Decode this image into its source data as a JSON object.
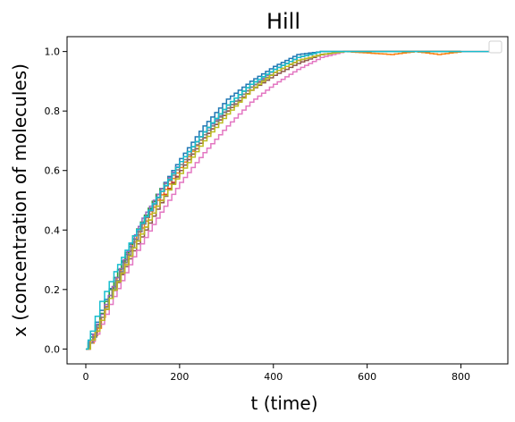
{
  "chart_data": {
    "type": "line",
    "title": "Hill",
    "xlabel": "t (time)",
    "ylabel": "x (concentration of molecules)",
    "xlim": [
      -40,
      900
    ],
    "ylim": [
      -0.05,
      1.05
    ],
    "xticks": [
      0,
      200,
      400,
      600,
      800
    ],
    "yticks": [
      0.0,
      0.2,
      0.4,
      0.6,
      0.8,
      1.0
    ],
    "xtick_labels": [
      "0",
      "200",
      "400",
      "600",
      "800"
    ],
    "ytick_labels": [
      "0.0",
      "0.2",
      "0.4",
      "0.6",
      "0.8",
      "1.0"
    ],
    "grid": false,
    "legend": "top-right (empty)",
    "series": [
      {
        "color": "#1f77b4",
        "points": [
          [
            0,
            0
          ],
          [
            10,
            0.05
          ],
          [
            30,
            0.13
          ],
          [
            60,
            0.24
          ],
          [
            100,
            0.37
          ],
          [
            150,
            0.52
          ],
          [
            200,
            0.64
          ],
          [
            250,
            0.75
          ],
          [
            300,
            0.84
          ],
          [
            350,
            0.9
          ],
          [
            400,
            0.95
          ],
          [
            450,
            0.99
          ],
          [
            500,
            1.0
          ],
          [
            800,
            1.0
          ]
        ]
      },
      {
        "color": "#ff7f0e",
        "points": [
          [
            0,
            0
          ],
          [
            10,
            0.02
          ],
          [
            25,
            0.07
          ],
          [
            50,
            0.18
          ],
          [
            100,
            0.36
          ],
          [
            150,
            0.5
          ],
          [
            200,
            0.61
          ],
          [
            250,
            0.72
          ],
          [
            300,
            0.81
          ],
          [
            350,
            0.88
          ],
          [
            400,
            0.93
          ],
          [
            450,
            0.97
          ],
          [
            500,
            0.99
          ],
          [
            550,
            1.0
          ],
          [
            650,
            0.99
          ],
          [
            700,
            1.0
          ],
          [
            750,
            0.99
          ],
          [
            800,
            1.0
          ]
        ]
      },
      {
        "color": "#2ca02c",
        "points": [
          [
            0,
            0
          ],
          [
            10,
            0.04
          ],
          [
            30,
            0.12
          ],
          [
            60,
            0.24
          ],
          [
            100,
            0.38
          ],
          [
            150,
            0.52
          ],
          [
            200,
            0.63
          ],
          [
            250,
            0.73
          ],
          [
            300,
            0.82
          ],
          [
            350,
            0.89
          ],
          [
            400,
            0.94
          ],
          [
            450,
            0.98
          ],
          [
            500,
            1.0
          ],
          [
            800,
            1.0
          ]
        ]
      },
      {
        "color": "#d62728",
        "points": [
          [
            0,
            0
          ],
          [
            20,
            0.06
          ],
          [
            50,
            0.17
          ],
          [
            100,
            0.34
          ],
          [
            150,
            0.48
          ],
          [
            200,
            0.6
          ],
          [
            250,
            0.71
          ],
          [
            300,
            0.8
          ],
          [
            350,
            0.87
          ],
          [
            400,
            0.93
          ],
          [
            450,
            0.97
          ],
          [
            500,
            0.99
          ],
          [
            550,
            1.0
          ],
          [
            860,
            1.0
          ]
        ]
      },
      {
        "color": "#9467bd",
        "points": [
          [
            0,
            0
          ],
          [
            15,
            0.05
          ],
          [
            40,
            0.15
          ],
          [
            80,
            0.3
          ],
          [
            120,
            0.44
          ],
          [
            160,
            0.54
          ],
          [
            200,
            0.63
          ],
          [
            250,
            0.73
          ],
          [
            300,
            0.81
          ],
          [
            350,
            0.88
          ],
          [
            400,
            0.94
          ],
          [
            450,
            0.98
          ],
          [
            500,
            1.0
          ],
          [
            800,
            1.0
          ]
        ]
      },
      {
        "color": "#8c564b",
        "points": [
          [
            0,
            0
          ],
          [
            20,
            0.06
          ],
          [
            50,
            0.17
          ],
          [
            100,
            0.33
          ],
          [
            150,
            0.47
          ],
          [
            200,
            0.6
          ],
          [
            250,
            0.71
          ],
          [
            300,
            0.8
          ],
          [
            350,
            0.87
          ],
          [
            400,
            0.92
          ],
          [
            450,
            0.96
          ],
          [
            500,
            0.99
          ],
          [
            550,
            1.0
          ],
          [
            800,
            1.0
          ]
        ]
      },
      {
        "color": "#e377c2",
        "points": [
          [
            0,
            0
          ],
          [
            20,
            0.05
          ],
          [
            50,
            0.15
          ],
          [
            100,
            0.31
          ],
          [
            150,
            0.44
          ],
          [
            200,
            0.56
          ],
          [
            250,
            0.66
          ],
          [
            300,
            0.75
          ],
          [
            350,
            0.83
          ],
          [
            400,
            0.89
          ],
          [
            450,
            0.94
          ],
          [
            500,
            0.98
          ],
          [
            550,
            1.0
          ],
          [
            800,
            1.0
          ]
        ]
      },
      {
        "color": "#7f7f7f",
        "points": [
          [
            0,
            0
          ],
          [
            15,
            0.04
          ],
          [
            40,
            0.14
          ],
          [
            80,
            0.29
          ],
          [
            120,
            0.42
          ],
          [
            160,
            0.53
          ],
          [
            200,
            0.62
          ],
          [
            250,
            0.72
          ],
          [
            300,
            0.81
          ],
          [
            350,
            0.88
          ],
          [
            400,
            0.93
          ],
          [
            450,
            0.97
          ],
          [
            500,
            0.99
          ],
          [
            550,
            1.0
          ],
          [
            800,
            1.0
          ]
        ]
      },
      {
        "color": "#bcbd22",
        "points": [
          [
            0,
            0
          ],
          [
            20,
            0.06
          ],
          [
            50,
            0.17
          ],
          [
            100,
            0.34
          ],
          [
            150,
            0.48
          ],
          [
            200,
            0.59
          ],
          [
            250,
            0.7
          ],
          [
            300,
            0.79
          ],
          [
            350,
            0.87
          ],
          [
            400,
            0.93
          ],
          [
            450,
            0.97
          ],
          [
            500,
            0.99
          ],
          [
            550,
            1.0
          ],
          [
            800,
            1.0
          ]
        ]
      },
      {
        "color": "#17becf",
        "points": [
          [
            0,
            0
          ],
          [
            10,
            0.06
          ],
          [
            30,
            0.16
          ],
          [
            60,
            0.26
          ],
          [
            100,
            0.38
          ],
          [
            150,
            0.51
          ],
          [
            200,
            0.63
          ],
          [
            250,
            0.73
          ],
          [
            300,
            0.82
          ],
          [
            350,
            0.89
          ],
          [
            400,
            0.94
          ],
          [
            450,
            0.98
          ],
          [
            500,
            1.0
          ],
          [
            860,
            1.0
          ]
        ]
      }
    ]
  }
}
